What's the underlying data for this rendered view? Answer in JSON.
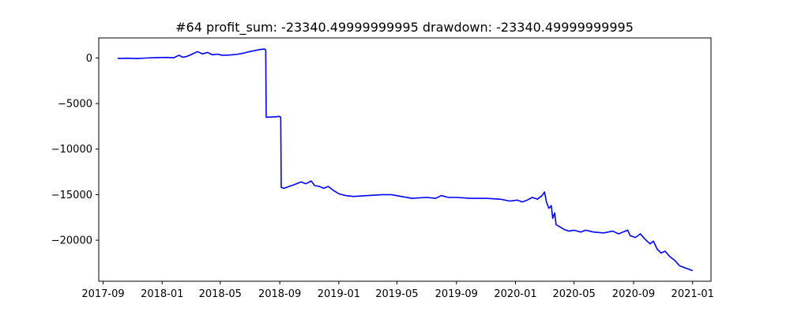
{
  "chart_data": {
    "type": "line",
    "title": "#64   profit_sum: -23340.49999999995 drawdown: -23340.49999999995",
    "xlabel": "",
    "ylabel": "",
    "x_ticks": [
      "2017-09",
      "2018-01",
      "2018-05",
      "2018-09",
      "2019-01",
      "2019-05",
      "2019-09",
      "2020-01",
      "2020-05",
      "2020-09",
      "2021-01"
    ],
    "y_ticks": [
      "0",
      "−5000",
      "−10000",
      "−15000",
      "−20000"
    ],
    "y_tick_values": [
      0,
      -5000,
      -10000,
      -15000,
      -20000
    ],
    "xlim": [
      "2017-08-23",
      "2021-02-08"
    ],
    "ylim": [
      -24500,
      2200
    ],
    "grid": false,
    "legend": "none",
    "series": [
      {
        "color": "#0000ff",
        "points": [
          [
            "2017-10-01",
            -50
          ],
          [
            "2017-10-20",
            -30
          ],
          [
            "2017-11-10",
            -60
          ],
          [
            "2017-12-01",
            0
          ],
          [
            "2017-12-20",
            40
          ],
          [
            "2018-01-10",
            60
          ],
          [
            "2018-01-25",
            20
          ],
          [
            "2018-02-05",
            300
          ],
          [
            "2018-02-12",
            80
          ],
          [
            "2018-02-20",
            150
          ],
          [
            "2018-03-01",
            350
          ],
          [
            "2018-03-15",
            700
          ],
          [
            "2018-03-25",
            450
          ],
          [
            "2018-04-05",
            600
          ],
          [
            "2018-04-15",
            350
          ],
          [
            "2018-04-25",
            420
          ],
          [
            "2018-05-05",
            300
          ],
          [
            "2018-05-20",
            320
          ],
          [
            "2018-06-05",
            400
          ],
          [
            "2018-06-20",
            550
          ],
          [
            "2018-07-01",
            700
          ],
          [
            "2018-07-15",
            850
          ],
          [
            "2018-07-25",
            950
          ],
          [
            "2018-08-01",
            980
          ],
          [
            "2018-08-03",
            850
          ],
          [
            "2018-08-04",
            -6500
          ],
          [
            "2018-08-10",
            -6500
          ],
          [
            "2018-08-25",
            -6450
          ],
          [
            "2018-08-30",
            -6400
          ],
          [
            "2018-09-03",
            -6500
          ],
          [
            "2018-09-04",
            -14200
          ],
          [
            "2018-09-10",
            -14300
          ],
          [
            "2018-09-20",
            -14100
          ],
          [
            "2018-10-01",
            -13900
          ],
          [
            "2018-10-15",
            -13600
          ],
          [
            "2018-10-25",
            -13800
          ],
          [
            "2018-11-05",
            -13500
          ],
          [
            "2018-11-12",
            -14000
          ],
          [
            "2018-11-22",
            -14100
          ],
          [
            "2018-12-01",
            -14300
          ],
          [
            "2018-12-10",
            -14100
          ],
          [
            "2018-12-20",
            -14500
          ],
          [
            "2019-01-01",
            -14900
          ],
          [
            "2019-01-15",
            -15100
          ],
          [
            "2019-02-01",
            -15200
          ],
          [
            "2019-03-01",
            -15100
          ],
          [
            "2019-04-01",
            -15000
          ],
          [
            "2019-04-20",
            -15000
          ],
          [
            "2019-05-10",
            -15200
          ],
          [
            "2019-06-01",
            -15400
          ],
          [
            "2019-07-01",
            -15300
          ],
          [
            "2019-07-20",
            -15400
          ],
          [
            "2019-08-01",
            -15100
          ],
          [
            "2019-08-15",
            -15300
          ],
          [
            "2019-09-01",
            -15300
          ],
          [
            "2019-10-01",
            -15400
          ],
          [
            "2019-11-01",
            -15400
          ],
          [
            "2019-12-01",
            -15500
          ],
          [
            "2019-12-20",
            -15700
          ],
          [
            "2020-01-05",
            -15600
          ],
          [
            "2020-01-15",
            -15800
          ],
          [
            "2020-01-25",
            -15600
          ],
          [
            "2020-02-05",
            -15300
          ],
          [
            "2020-02-15",
            -15500
          ],
          [
            "2020-02-25",
            -15100
          ],
          [
            "2020-03-01",
            -14700
          ],
          [
            "2020-03-05",
            -15800
          ],
          [
            "2020-03-10",
            -16500
          ],
          [
            "2020-03-15",
            -16200
          ],
          [
            "2020-03-18",
            -17600
          ],
          [
            "2020-03-22",
            -17000
          ],
          [
            "2020-03-25",
            -18300
          ],
          [
            "2020-04-01",
            -18500
          ],
          [
            "2020-04-10",
            -18800
          ],
          [
            "2020-04-20",
            -19000
          ],
          [
            "2020-05-01",
            -18900
          ],
          [
            "2020-05-15",
            -19100
          ],
          [
            "2020-05-25",
            -18900
          ],
          [
            "2020-06-10",
            -19100
          ],
          [
            "2020-07-01",
            -19200
          ],
          [
            "2020-07-20",
            -19000
          ],
          [
            "2020-08-01",
            -19300
          ],
          [
            "2020-08-20",
            -18900
          ],
          [
            "2020-08-25",
            -19500
          ],
          [
            "2020-09-05",
            -19700
          ],
          [
            "2020-09-15",
            -19300
          ],
          [
            "2020-09-25",
            -19900
          ],
          [
            "2020-10-05",
            -20400
          ],
          [
            "2020-10-12",
            -20100
          ],
          [
            "2020-10-20",
            -21000
          ],
          [
            "2020-10-28",
            -21400
          ],
          [
            "2020-11-05",
            -21200
          ],
          [
            "2020-11-15",
            -21800
          ],
          [
            "2020-11-25",
            -22200
          ],
          [
            "2020-12-05",
            -22800
          ],
          [
            "2020-12-15",
            -23000
          ],
          [
            "2020-12-25",
            -23200
          ],
          [
            "2021-01-01",
            -23340
          ]
        ]
      }
    ]
  }
}
